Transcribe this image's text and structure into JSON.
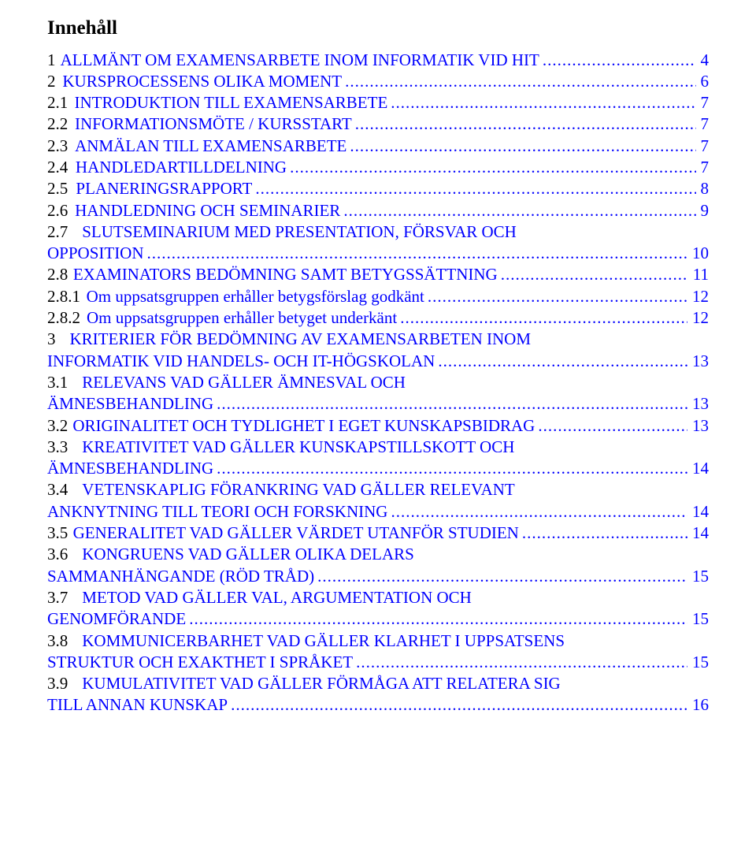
{
  "heading": "Innehåll",
  "colors": {
    "link": "#0000ff",
    "text": "#000000",
    "background": "#ffffff"
  },
  "typography": {
    "font_family": "Times New Roman",
    "body_fontsize_pt": 16,
    "heading_fontsize_pt": 19,
    "heading_weight": "bold"
  },
  "toc": [
    {
      "num": "1",
      "label": "ALLMÄNT OM EXAMENSARBETE INOM INFORMATIK VID HIT",
      "page": "4",
      "wrap": false,
      "level": 0
    },
    {
      "num": "2",
      "label": "KURSPROCESSENS OLIKA MOMENT",
      "page": "6",
      "wrap": false,
      "level": 0
    },
    {
      "num": "2.1",
      "label": "INTRODUKTION TILL EXAMENSARBETE",
      "page": "7",
      "wrap": false,
      "level": 1
    },
    {
      "num": "2.2",
      "label": "INFORMATIONSMÖTE / KURSSTART",
      "page": "7",
      "wrap": false,
      "level": 1
    },
    {
      "num": "2.3",
      "label": "ANMÄLAN TILL EXAMENSARBETE",
      "page": "7",
      "wrap": false,
      "level": 1
    },
    {
      "num": "2.4",
      "label": "HANDLEDARTILLDELNING",
      "page": "7",
      "wrap": false,
      "level": 1
    },
    {
      "num": "2.5",
      "label": "PLANERINGSRAPPORT",
      "page": "8",
      "wrap": false,
      "level": 1
    },
    {
      "num": "2.6",
      "label": "HANDLEDNING OCH SEMINARIER",
      "page": "9",
      "wrap": false,
      "level": 1
    },
    {
      "num": "2.7",
      "label_line1": "SLUTSEMINARIUM MED PRESENTATION, FÖRSVAR OCH",
      "label_line2": "OPPOSITION",
      "page": "10",
      "wrap": true,
      "level": 1
    },
    {
      "num": "2.8",
      "label": "EXAMINATORS BEDÖMNING SAMT BETYGSSÄTTNING",
      "page": "11",
      "wrap": false,
      "level": 1
    },
    {
      "num": "2.8.1",
      "label": "Om uppsatsgruppen erhåller betygsförslag godkänt",
      "page": "12",
      "wrap": false,
      "level": 2
    },
    {
      "num": "2.8.2",
      "label": "Om uppsatsgruppen erhåller betyget underkänt",
      "page": "12",
      "wrap": false,
      "level": 2
    },
    {
      "num": "3",
      "label_line1": "KRITERIER FÖR BEDÖMNING AV EXAMENSARBETEN INOM",
      "label_line2": "INFORMATIK VID HANDELS- OCH IT-HÖGSKOLAN",
      "page": "13",
      "wrap": true,
      "level": 0
    },
    {
      "num": "3.1",
      "label_line1": "RELEVANS VAD GÄLLER ÄMNESVAL OCH",
      "label_line2": "ÄMNESBEHANDLING",
      "page": "13",
      "wrap": true,
      "level": 1
    },
    {
      "num": "3.2",
      "label": "ORIGINALITET OCH TYDLIGHET I EGET KUNSKAPSBIDRAG",
      "page": "13",
      "wrap": false,
      "level": 1
    },
    {
      "num": "3.3",
      "label_line1": "KREATIVITET VAD GÄLLER KUNSKAPSTILLSKOTT OCH",
      "label_line2": "ÄMNESBEHANDLING",
      "page": "14",
      "wrap": true,
      "level": 1
    },
    {
      "num": "3.4",
      "label_line1": "VETENSKAPLIG FÖRANKRING VAD GÄLLER RELEVANT",
      "label_line2": "ANKNYTNING TILL TEORI OCH FORSKNING",
      "page": "14",
      "wrap": true,
      "level": 1
    },
    {
      "num": "3.5",
      "label": "GENERALITET VAD GÄLLER VÄRDET UTANFÖR STUDIEN",
      "page": "14",
      "wrap": false,
      "level": 1
    },
    {
      "num": "3.6",
      "label_line1": "KONGRUENS VAD GÄLLER OLIKA DELARS",
      "label_line2": "SAMMANHÄNGANDE (RÖD TRÅD)",
      "page": "15",
      "wrap": true,
      "level": 1
    },
    {
      "num": "3.7",
      "label_line1": "METOD VAD GÄLLER VAL, ARGUMENTATION OCH",
      "label_line2": "GENOMFÖRANDE",
      "page": "15",
      "wrap": true,
      "level": 1
    },
    {
      "num": "3.8",
      "label_line1": "KOMMUNICERBARHET VAD GÄLLER KLARHET I UPPSATSENS",
      "label_line2": "STRUKTUR OCH EXAKTHET I SPRÅKET",
      "page": "15",
      "wrap": true,
      "level": 1
    },
    {
      "num": "3.9",
      "label_line1": "KUMULATIVITET VAD GÄLLER FÖRMÅGA ATT RELATERA SIG",
      "label_line2": "TILL ANNAN KUNSKAP",
      "page": "16",
      "wrap": true,
      "level": 1
    }
  ]
}
